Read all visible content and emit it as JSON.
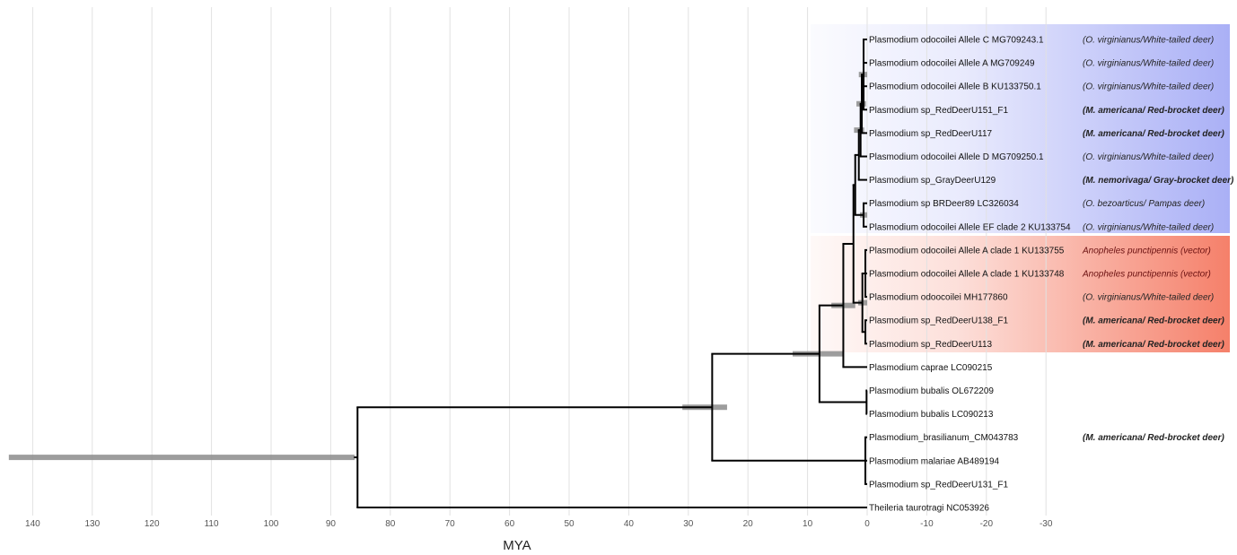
{
  "axis": {
    "title": "MYA",
    "ticks": [
      140,
      130,
      120,
      110,
      100,
      90,
      80,
      70,
      60,
      50,
      40,
      30,
      20,
      10,
      0,
      -10,
      -20,
      -30
    ]
  },
  "colors": {
    "clade_blue": "#aab0f6",
    "clade_red": "#f5806a",
    "branch": "#000000",
    "hpd_bar": "#8c8c8c",
    "grid": "#e2e2e2"
  },
  "tips": [
    {
      "label": "Plasmodium odocoilei Allele C MG709243.1",
      "host": "(O. virginianus/White-tailed deer)",
      "host_style": "normal"
    },
    {
      "label": "Plasmodium odocoilei Allele A MG709249",
      "host": "(O. virginianus/White-tailed deer)",
      "host_style": "normal"
    },
    {
      "label": "Plasmodium odocoilei Allele B KU133750.1",
      "host": "(O. virginianus/White-tailed deer)",
      "host_style": "normal"
    },
    {
      "label": "Plasmodium sp_RedDeerU151_F1",
      "host": "(M. americana/ Red-brocket deer)",
      "host_style": "bold"
    },
    {
      "label": "Plasmodium sp_RedDeerU117",
      "host": "(M. americana/ Red-brocket deer)",
      "host_style": "bold"
    },
    {
      "label": "Plasmodium odocoilei Allele D MG709250.1",
      "host": "(O. virginianus/White-tailed deer)",
      "host_style": "normal"
    },
    {
      "label": "Plasmodium sp_GrayDeerU129",
      "host": "(M. nemorivaga/ Gray-brocket deer)",
      "host_style": "bold"
    },
    {
      "label": "Plasmodium sp BRDeer89 LC326034",
      "host": "(O. bezoarticus/ Pampas deer)",
      "host_style": "normal"
    },
    {
      "label": "Plasmodium odocoilei Allele EF clade 2 KU133754",
      "host": "(O. virginianus/White-tailed deer)",
      "host_style": "normal"
    },
    {
      "label": "Plasmodium odocoilei Allele A clade 1 KU133755",
      "host": "Anopheles punctipennis (vector)",
      "host_style": "vector"
    },
    {
      "label": "Plasmodium odocoilei Allele A clade 1 KU133748",
      "host": "Anopheles punctipennis (vector)",
      "host_style": "vector"
    },
    {
      "label": "Plasmodium odoocoilei MH177860",
      "host": "(O. virginianus/White-tailed deer)",
      "host_style": "normal"
    },
    {
      "label": "Plasmodium sp_RedDeerU138_F1",
      "host": "(M. americana/ Red-brocket deer)",
      "host_style": "bold"
    },
    {
      "label": "Plasmodium sp_RedDeerU113",
      "host": "(M. americana/ Red-brocket deer)",
      "host_style": "bold"
    },
    {
      "label": "Plasmodium caprae LC090215",
      "host": "",
      "host_style": "normal"
    },
    {
      "label": "Plasmodium bubalis OL672209",
      "host": "",
      "host_style": "normal"
    },
    {
      "label": "Plasmodium bubalis LC090213",
      "host": "",
      "host_style": "normal"
    },
    {
      "label": "Plasmodium_brasilianum_CM043783",
      "host": "(M. americana/ Red-brocket deer)",
      "host_style": "bold"
    },
    {
      "label": "Plasmodium malariae AB489194",
      "host": "",
      "host_style": "normal"
    },
    {
      "label": "Plasmodium sp_RedDeerU131_F1",
      "host": "",
      "host_style": "normal"
    },
    {
      "label": "Theileria taurotragi NC053926",
      "host": "",
      "host_style": "normal"
    }
  ],
  "nodes": [
    {
      "id": "root",
      "age": 85.5,
      "children": [
        "n_plas",
        "t20"
      ],
      "hpd": [
        144,
        86
      ]
    },
    {
      "id": "n_plas",
      "age": 26,
      "children": [
        "n_ungu",
        "n_mal"
      ],
      "hpd": [
        31,
        23.5
      ]
    },
    {
      "id": "n_ungu",
      "age": 8,
      "children": [
        "n_big",
        "n_bub"
      ],
      "hpd": [
        12.5,
        4
      ]
    },
    {
      "id": "n_bub",
      "age": 0.1,
      "children": [
        "t15",
        "t16"
      ]
    },
    {
      "id": "n_big",
      "age": 4,
      "children": [
        "n_od",
        "t14"
      ],
      "hpd": [
        6,
        2
      ]
    },
    {
      "id": "n_od",
      "age": 2.3,
      "children": [
        "n_blue",
        "n_red"
      ]
    },
    {
      "id": "n_red",
      "age": 0.8,
      "children": [
        "n_r1",
        "n_r2"
      ],
      "hpd": [
        1.5,
        0
      ]
    },
    {
      "id": "n_r1",
      "age": 0.3,
      "children": [
        "t9",
        "t10",
        "t11"
      ]
    },
    {
      "id": "n_r2",
      "age": 0.3,
      "children": [
        "t12",
        "t13"
      ]
    },
    {
      "id": "n_blue",
      "age": 2.0,
      "children": [
        "n_b1",
        "n_b2"
      ]
    },
    {
      "id": "n_b2",
      "age": 0.6,
      "children": [
        "t7",
        "t8"
      ],
      "hpd": [
        1.2,
        0
      ]
    },
    {
      "id": "n_b1",
      "age": 1.4,
      "children": [
        "n_b1a",
        "t6"
      ]
    },
    {
      "id": "n_b1a",
      "age": 1.1,
      "children": [
        "n_b1b",
        "t5"
      ],
      "hpd": [
        2.2,
        0.5
      ]
    },
    {
      "id": "n_b1b",
      "age": 0.9,
      "children": [
        "n_b1c",
        "t4"
      ],
      "hpd": [
        1.8,
        0.2
      ]
    },
    {
      "id": "n_b1c",
      "age": 0.6,
      "children": [
        "t0",
        "t1",
        "t2",
        "t3"
      ],
      "hpd": [
        1.4,
        0
      ]
    },
    {
      "id": "n_mal",
      "age": 0.3,
      "children": [
        "t17",
        "t18",
        "t19"
      ]
    }
  ]
}
